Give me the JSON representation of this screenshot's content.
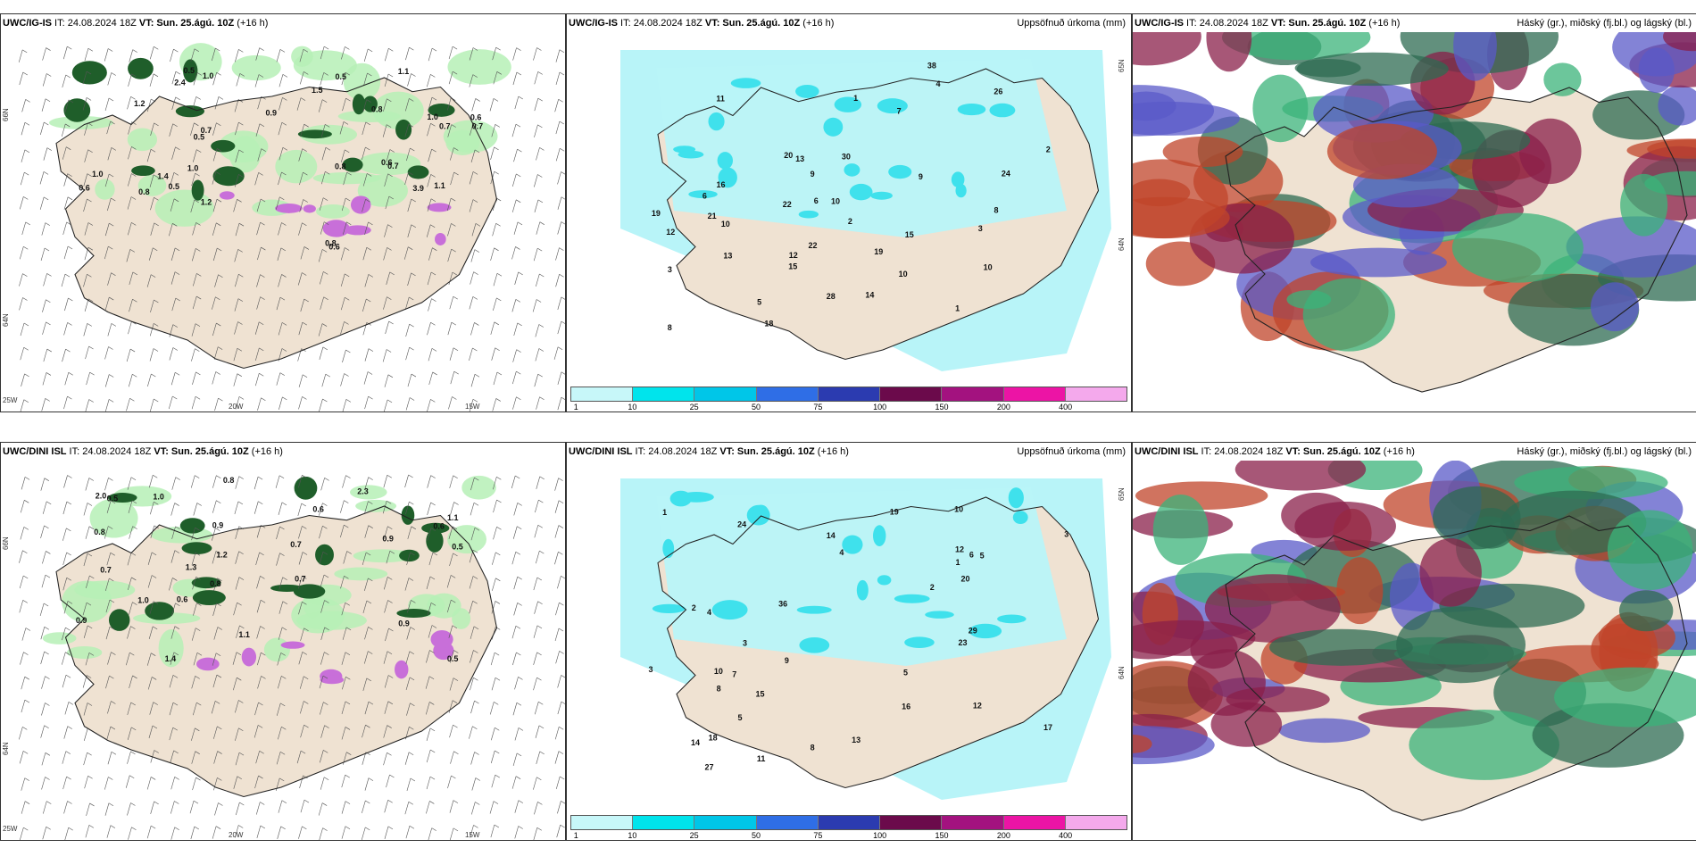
{
  "colors": {
    "land": "#efe2d2",
    "sea": "#ffffff",
    "precip_light": "#b6f0b6",
    "precip_dark": "#1f5e2a",
    "snow": "#c86fd9",
    "accum_light": "#b8f4f8",
    "accum_mid": "#3fe1ec",
    "high_cloud": "#2e6b52",
    "mid_cloud": "#8a1f4a",
    "low_cloud": "#5a5ac8"
  },
  "panels": [
    {
      "id": "wind-precip-igis",
      "model": "UWC/IG-IS",
      "it_label": "IT: 24.08.2024 18Z",
      "vt_label": "VT: Sun. 25.ágú. 10Z",
      "lead": "(+16 h)",
      "right_title": "",
      "values": [
        "0.8",
        "0.7",
        "0.6",
        "1.4",
        "1.0",
        "0.5",
        "0.9",
        "1.2",
        "0.7",
        "0.5",
        "0.8",
        "1.0",
        "0.6",
        "0.8",
        "2.4",
        "1.0",
        "1.5",
        "0.7",
        "0.5",
        "1.1",
        "1.0",
        "0.6",
        "3.9",
        "1.1",
        "1.2",
        "0.7",
        "0.8",
        "0.5",
        "0.6"
      ],
      "ticks": {
        "lat1": "66N",
        "lat2": "64N",
        "lon1": "25W",
        "lon2": "20W",
        "lon3": "15W"
      }
    },
    {
      "id": "accum-igis",
      "model": "UWC/IG-IS",
      "it_label": "IT: 24.08.2024 18Z",
      "vt_label": "VT: Sun. 25.ágú. 10Z",
      "lead": "(+16 h)",
      "right_title": "Uppsöfnuð úrkoma (mm)",
      "values": [
        "2",
        "1",
        "28",
        "10",
        "19",
        "16",
        "15",
        "14",
        "12",
        "10",
        "13",
        "18",
        "30",
        "24",
        "22",
        "19",
        "20",
        "10",
        "11",
        "6",
        "8",
        "38",
        "7",
        "6",
        "22",
        "3",
        "13",
        "9",
        "8",
        "1",
        "3",
        "5",
        "9",
        "21",
        "4",
        "2",
        "12",
        "10",
        "15",
        "26"
      ],
      "ticks": {
        "lat1": "65N",
        "lat2": "64N"
      }
    },
    {
      "id": "cloud-igis",
      "model": "UWC/IG-IS",
      "it_label": "IT: 24.08.2024 18Z",
      "vt_label": "VT: Sun. 25.ágú. 10Z",
      "lead": "(+16 h)",
      "right_title": "Háský (gr.), miðský (fj.bl.) og lágský (bl.)",
      "values": [],
      "ticks": {}
    },
    {
      "id": "wind-precip-dini",
      "model": "UWC/DINI ISL",
      "it_label": "IT: 24.08.2024 18Z",
      "vt_label": "VT: Sun. 25.ágú. 10Z",
      "lead": "(+16 h)",
      "right_title": "",
      "values": [
        "0.9",
        "0.8",
        "0.7",
        "2.3",
        "1.4",
        "1.0",
        "0.5",
        "0.9",
        "1.1",
        "1.2",
        "0.6",
        "0.7",
        "0.8",
        "0.5",
        "0.9",
        "1.0",
        "0.6",
        "0.8",
        "1.3",
        "2.0",
        "0.7",
        "0.5",
        "0.6",
        "0.9",
        "1.1"
      ],
      "ticks": {
        "lat1": "66N",
        "lat2": "64N",
        "lon1": "25W",
        "lon2": "20W",
        "lon3": "15W"
      }
    },
    {
      "id": "accum-dini",
      "model": "UWC/DINI ISL",
      "it_label": "IT: 24.08.2024 18Z",
      "vt_label": "VT: Sun. 25.ágú. 10Z",
      "lead": "(+16 h)",
      "right_title": "Uppsöfnuð úrkoma (mm)",
      "values": [
        "8",
        "24",
        "10",
        "27",
        "18",
        "14",
        "29",
        "12",
        "19",
        "16",
        "36",
        "13",
        "3",
        "5",
        "8",
        "11",
        "12",
        "17",
        "23",
        "9",
        "10",
        "6",
        "7",
        "4",
        "2",
        "1",
        "3",
        "5",
        "15",
        "20",
        "4",
        "2",
        "1",
        "3",
        "5",
        "14"
      ],
      "ticks": {
        "lat1": "65N",
        "lat2": "64N"
      }
    },
    {
      "id": "cloud-dini",
      "model": "UWC/DINI ISL",
      "it_label": "IT: 24.08.2024 18Z",
      "vt_label": "VT: Sun. 25.ágú. 10Z",
      "lead": "(+16 h)",
      "right_title": "Háský (gr.), miðský (fj.bl.) og lágský (bl.)",
      "values": [],
      "ticks": {}
    }
  ],
  "legend": {
    "labels": [
      "1",
      "10",
      "25",
      "50",
      "75",
      "100",
      "150",
      "200",
      "400"
    ],
    "colors": [
      "#c7f7f9",
      "#00e4ec",
      "#00c6e8",
      "#2f6ee6",
      "#2b3bb0",
      "#6b0a4b",
      "#a3127f",
      "#ec14a5",
      "#f4a9ec"
    ]
  }
}
